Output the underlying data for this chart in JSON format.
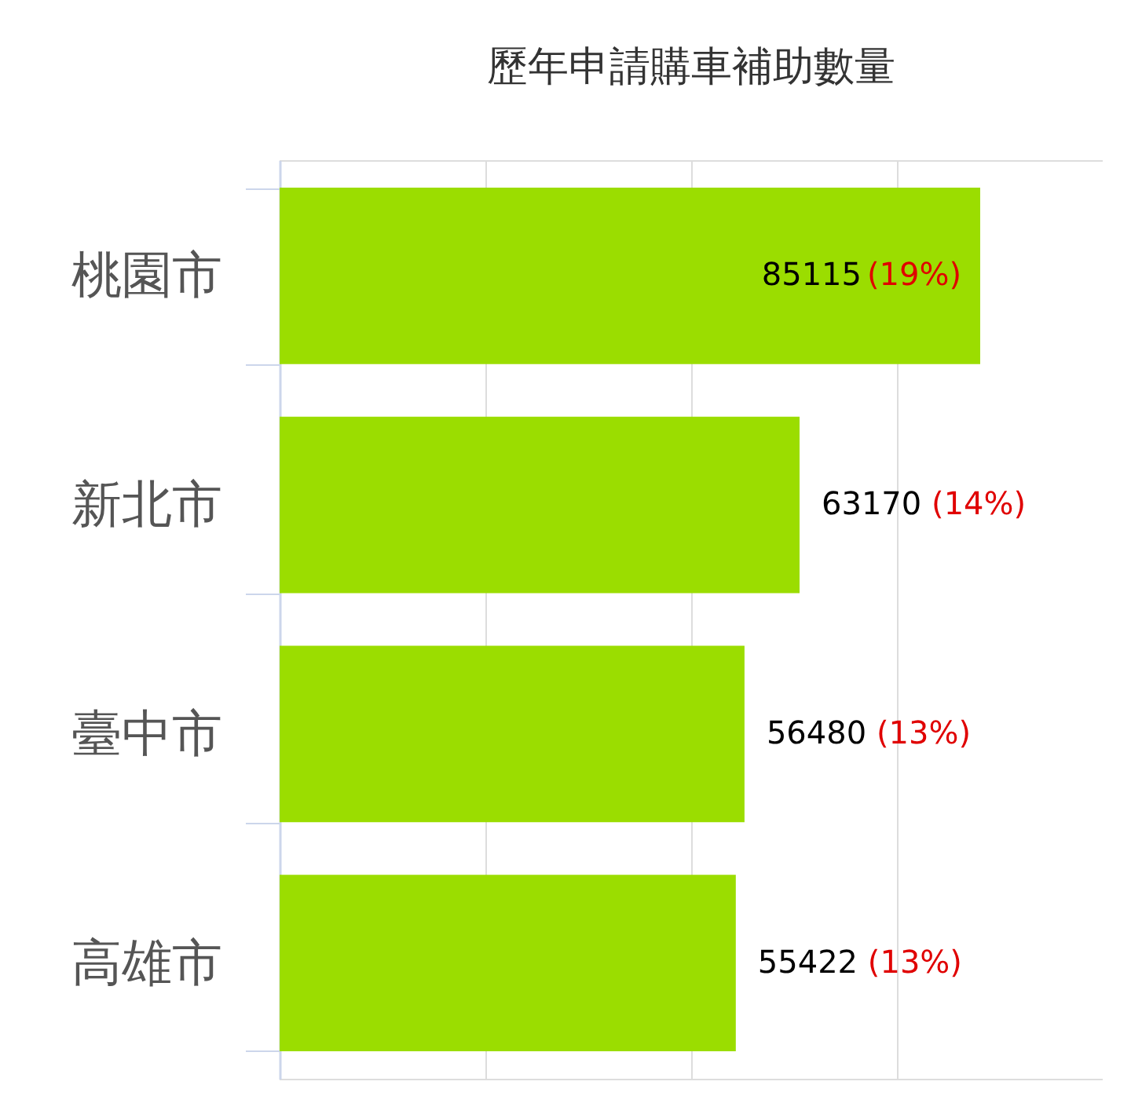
{
  "chart_data": {
    "type": "bar",
    "orientation": "horizontal",
    "title": "歷年申請購車補助數量",
    "categories": [
      "桃園市",
      "新北市",
      "臺中市",
      "高雄市"
    ],
    "values": [
      85115,
      63170,
      56480,
      55422
    ],
    "value_labels": [
      "85115 (19%)",
      "63170 (14%)",
      "56480 (13%)",
      "55422 (13%)"
    ],
    "color": "#9bdd00",
    "xlim": [
      0,
      100000
    ],
    "xticks": [
      {
        "value": 25000,
        "label": null
      },
      {
        "value": 50000,
        "label": null
      },
      {
        "value": 75000,
        "label": null
      }
    ],
    "grid": "x",
    "tick_labels": "y"
  }
}
